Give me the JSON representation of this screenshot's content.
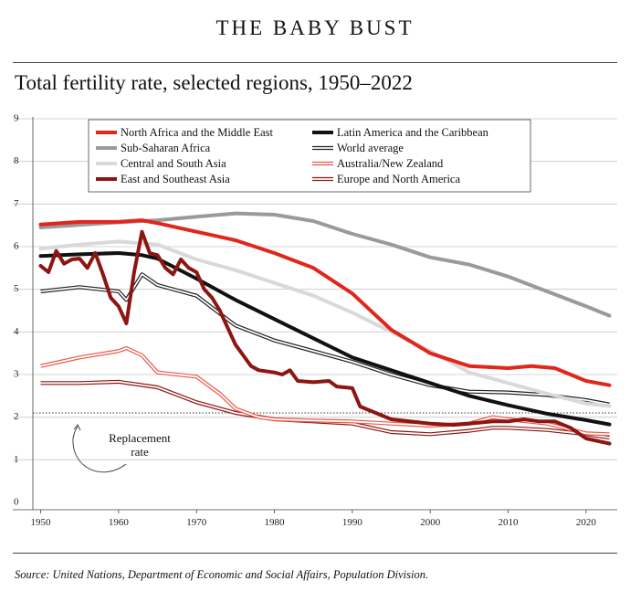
{
  "header": {
    "kicker": "THE BABY BUST"
  },
  "footer": {
    "source": "Source: United Nations, Department of Economic and Social Affairs, Population Division."
  },
  "chart_data": {
    "type": "line",
    "title": "Total fertility rate, selected regions, 1950–2022",
    "xlabel": "",
    "ylabel": "",
    "xlim": [
      1949,
      2024
    ],
    "ylim": [
      0,
      9
    ],
    "x_ticks": [
      1950,
      1960,
      1970,
      1980,
      1990,
      2000,
      2010,
      2020
    ],
    "y_ticks": [
      0,
      1,
      2,
      3,
      4,
      5,
      6,
      7,
      8,
      9
    ],
    "grid": "horizontal",
    "legend_position": "top",
    "reference_line": {
      "value": 2.1,
      "label": "Replacement rate"
    },
    "series": [
      {
        "name": "North Africa and the Middle East",
        "color": "#e1261c",
        "style": "thick",
        "points": [
          [
            1950,
            6.52
          ],
          [
            1955,
            6.58
          ],
          [
            1960,
            6.58
          ],
          [
            1963,
            6.62
          ],
          [
            1965,
            6.55
          ],
          [
            1970,
            6.35
          ],
          [
            1975,
            6.15
          ],
          [
            1980,
            5.85
          ],
          [
            1985,
            5.5
          ],
          [
            1990,
            4.9
          ],
          [
            1995,
            4.05
          ],
          [
            2000,
            3.5
          ],
          [
            2005,
            3.2
          ],
          [
            2010,
            3.15
          ],
          [
            2013,
            3.2
          ],
          [
            2016,
            3.15
          ],
          [
            2020,
            2.85
          ],
          [
            2023,
            2.75
          ]
        ]
      },
      {
        "name": "Sub-Saharan Africa",
        "color": "#9a9a9a",
        "style": "thick",
        "points": [
          [
            1950,
            6.45
          ],
          [
            1960,
            6.57
          ],
          [
            1965,
            6.62
          ],
          [
            1970,
            6.7
          ],
          [
            1975,
            6.78
          ],
          [
            1980,
            6.75
          ],
          [
            1985,
            6.6
          ],
          [
            1990,
            6.3
          ],
          [
            1995,
            6.05
          ],
          [
            2000,
            5.75
          ],
          [
            2005,
            5.58
          ],
          [
            2010,
            5.3
          ],
          [
            2015,
            4.95
          ],
          [
            2020,
            4.6
          ],
          [
            2023,
            4.38
          ]
        ]
      },
      {
        "name": "Central and South Asia",
        "color": "#d9d9d9",
        "style": "thick",
        "points": [
          [
            1950,
            5.95
          ],
          [
            1955,
            6.05
          ],
          [
            1960,
            6.12
          ],
          [
            1965,
            6.05
          ],
          [
            1970,
            5.7
          ],
          [
            1975,
            5.45
          ],
          [
            1980,
            5.15
          ],
          [
            1985,
            4.85
          ],
          [
            1990,
            4.45
          ],
          [
            1995,
            4.0
          ],
          [
            2000,
            3.55
          ],
          [
            2005,
            3.05
          ],
          [
            2010,
            2.8
          ],
          [
            2015,
            2.55
          ],
          [
            2020,
            2.32
          ],
          [
            2023,
            2.26
          ]
        ]
      },
      {
        "name": "East and Southeast Asia",
        "color": "#8b1612",
        "style": "thick",
        "points": [
          [
            1950,
            5.55
          ],
          [
            1951,
            5.4
          ],
          [
            1952,
            5.9
          ],
          [
            1953,
            5.6
          ],
          [
            1954,
            5.7
          ],
          [
            1955,
            5.72
          ],
          [
            1956,
            5.5
          ],
          [
            1957,
            5.85
          ],
          [
            1958,
            5.35
          ],
          [
            1959,
            4.8
          ],
          [
            1960,
            4.6
          ],
          [
            1961,
            4.2
          ],
          [
            1962,
            5.4
          ],
          [
            1963,
            6.35
          ],
          [
            1964,
            5.85
          ],
          [
            1965,
            5.8
          ],
          [
            1966,
            5.5
          ],
          [
            1967,
            5.35
          ],
          [
            1968,
            5.7
          ],
          [
            1969,
            5.5
          ],
          [
            1970,
            5.4
          ],
          [
            1971,
            5.0
          ],
          [
            1972,
            4.8
          ],
          [
            1973,
            4.5
          ],
          [
            1974,
            4.1
          ],
          [
            1975,
            3.7
          ],
          [
            1976,
            3.45
          ],
          [
            1977,
            3.2
          ],
          [
            1978,
            3.1
          ],
          [
            1980,
            3.05
          ],
          [
            1981,
            3.0
          ],
          [
            1982,
            3.1
          ],
          [
            1983,
            2.85
          ],
          [
            1985,
            2.82
          ],
          [
            1987,
            2.85
          ],
          [
            1988,
            2.72
          ],
          [
            1990,
            2.68
          ],
          [
            1991,
            2.25
          ],
          [
            1993,
            2.1
          ],
          [
            1995,
            1.95
          ],
          [
            2000,
            1.85
          ],
          [
            2003,
            1.82
          ],
          [
            2005,
            1.85
          ],
          [
            2008,
            1.9
          ],
          [
            2010,
            1.9
          ],
          [
            2012,
            1.95
          ],
          [
            2014,
            1.9
          ],
          [
            2016,
            1.9
          ],
          [
            2018,
            1.75
          ],
          [
            2020,
            1.5
          ],
          [
            2023,
            1.38
          ]
        ]
      },
      {
        "name": "Latin America and the Caribbean",
        "color": "#111111",
        "style": "thick",
        "points": [
          [
            1950,
            5.78
          ],
          [
            1955,
            5.82
          ],
          [
            1960,
            5.85
          ],
          [
            1963,
            5.8
          ],
          [
            1965,
            5.72
          ],
          [
            1970,
            5.25
          ],
          [
            1975,
            4.75
          ],
          [
            1980,
            4.3
          ],
          [
            1985,
            3.85
          ],
          [
            1990,
            3.4
          ],
          [
            1995,
            3.1
          ],
          [
            2000,
            2.8
          ],
          [
            2005,
            2.5
          ],
          [
            2010,
            2.28
          ],
          [
            2015,
            2.08
          ],
          [
            2020,
            1.93
          ],
          [
            2023,
            1.83
          ]
        ]
      },
      {
        "name": "World average",
        "color": "#222222",
        "style": "double",
        "points": [
          [
            1950,
            4.95
          ],
          [
            1955,
            5.05
          ],
          [
            1960,
            4.95
          ],
          [
            1961,
            4.75
          ],
          [
            1963,
            5.35
          ],
          [
            1965,
            5.1
          ],
          [
            1970,
            4.85
          ],
          [
            1975,
            4.15
          ],
          [
            1980,
            3.8
          ],
          [
            1985,
            3.55
          ],
          [
            1990,
            3.3
          ],
          [
            1995,
            3.0
          ],
          [
            2000,
            2.75
          ],
          [
            2005,
            2.6
          ],
          [
            2010,
            2.58
          ],
          [
            2015,
            2.52
          ],
          [
            2020,
            2.4
          ],
          [
            2023,
            2.3
          ]
        ]
      },
      {
        "name": "Australia/New Zealand",
        "color": "#e8584a",
        "style": "double",
        "points": [
          [
            1950,
            3.2
          ],
          [
            1955,
            3.4
          ],
          [
            1960,
            3.55
          ],
          [
            1961,
            3.62
          ],
          [
            1963,
            3.45
          ],
          [
            1965,
            3.05
          ],
          [
            1970,
            2.95
          ],
          [
            1973,
            2.55
          ],
          [
            1975,
            2.2
          ],
          [
            1978,
            2.0
          ],
          [
            1980,
            1.95
          ],
          [
            1985,
            1.92
          ],
          [
            1990,
            1.9
          ],
          [
            1995,
            1.85
          ],
          [
            2000,
            1.8
          ],
          [
            2005,
            1.85
          ],
          [
            2008,
            2.0
          ],
          [
            2010,
            1.95
          ],
          [
            2015,
            1.85
          ],
          [
            2020,
            1.62
          ],
          [
            2023,
            1.6
          ]
        ]
      },
      {
        "name": "Europe and North America",
        "color": "#8b1612",
        "style": "double",
        "points": [
          [
            1950,
            2.8
          ],
          [
            1955,
            2.8
          ],
          [
            1960,
            2.83
          ],
          [
            1965,
            2.7
          ],
          [
            1970,
            2.35
          ],
          [
            1975,
            2.1
          ],
          [
            1980,
            1.95
          ],
          [
            1985,
            1.9
          ],
          [
            1990,
            1.85
          ],
          [
            1995,
            1.65
          ],
          [
            2000,
            1.6
          ],
          [
            2005,
            1.68
          ],
          [
            2008,
            1.75
          ],
          [
            2010,
            1.75
          ],
          [
            2015,
            1.7
          ],
          [
            2020,
            1.6
          ],
          [
            2023,
            1.52
          ]
        ]
      }
    ]
  }
}
